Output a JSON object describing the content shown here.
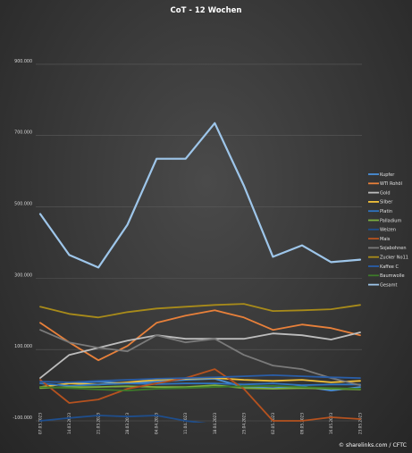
{
  "chart_data": {
    "type": "line",
    "title": "CoT - 12 Wochen",
    "credit": "© sharelinks.com / CFTC",
    "xlabel": "",
    "ylabel": "",
    "ylim": [
      -100000,
      1000000
    ],
    "yticks": [
      -100000,
      100000,
      300000,
      500000,
      700000,
      900000
    ],
    "ytick_labels": [
      "-100.000",
      "100.000",
      "300.000",
      "500.000",
      "700.000",
      "900.000"
    ],
    "grid": true,
    "legend_position": "right",
    "categories": [
      "07.03.2023",
      "14.03.2023",
      "21.03.2023",
      "28.03.2023",
      "04.04.2023",
      "11.04.2023",
      "18.04.2023",
      "25.04.2023",
      "02.05.2023",
      "09.05.2023",
      "16.05.2023",
      "23.05.2023"
    ],
    "series": [
      {
        "name": "Kupfer",
        "color": "#4a90d9",
        "values": [
          -5000,
          5000,
          10000,
          5000,
          10000,
          15000,
          18000,
          -5000,
          -8000,
          -3000,
          -15000,
          -5000
        ]
      },
      {
        "name": "WTI Rohöl",
        "color": "#e8803a",
        "values": [
          175000,
          120000,
          70000,
          110000,
          175000,
          195000,
          210000,
          190000,
          155000,
          170000,
          160000,
          140000
        ]
      },
      {
        "name": "Gold",
        "color": "#bdbdbd",
        "values": [
          20000,
          85000,
          105000,
          125000,
          140000,
          130000,
          130000,
          130000,
          145000,
          140000,
          128000,
          148000
        ]
      },
      {
        "name": "Silber",
        "color": "#f2c13a",
        "values": [
          -5000,
          5000,
          2000,
          8000,
          15000,
          18000,
          20000,
          15000,
          12000,
          15000,
          8000,
          12000
        ]
      },
      {
        "name": "Platin",
        "color": "#2f74c0",
        "values": [
          5000,
          -2000,
          2000,
          5000,
          3000,
          5000,
          5000,
          2000,
          5000,
          0,
          2000,
          2000
        ]
      },
      {
        "name": "Palladium",
        "color": "#7cae3f",
        "values": [
          -8000,
          -5000,
          -5000,
          -3000,
          -5000,
          -5000,
          0,
          -8000,
          -10000,
          -8000,
          -10000,
          -12000
        ]
      },
      {
        "name": "Weizen",
        "color": "#1f4e8c",
        "values": [
          -100000,
          -92000,
          -85000,
          -88000,
          -85000,
          -100000,
          -110000,
          -115000,
          -118000,
          -120000,
          -112000,
          -110000
        ]
      },
      {
        "name": "Mais",
        "color": "#b5521f",
        "values": [
          15000,
          -50000,
          -40000,
          -10000,
          5000,
          20000,
          45000,
          -10000,
          -100000,
          -100000,
          -90000,
          -95000
        ]
      },
      {
        "name": "Sojabohnen",
        "color": "#7a7a7a",
        "values": [
          155000,
          120000,
          105000,
          95000,
          140000,
          120000,
          130000,
          85000,
          55000,
          45000,
          20000,
          0
        ]
      },
      {
        "name": "Zucker No11",
        "color": "#a88b1a",
        "values": [
          220000,
          200000,
          190000,
          205000,
          215000,
          220000,
          225000,
          228000,
          208000,
          210000,
          213000,
          225000
        ]
      },
      {
        "name": "Kaffee C",
        "color": "#2a5ea8",
        "values": [
          10000,
          8000,
          12000,
          15000,
          18000,
          20000,
          22000,
          25000,
          28000,
          25000,
          22000,
          20000
        ]
      },
      {
        "name": "Baumwolle",
        "color": "#3d7a2a",
        "values": [
          -5000,
          -8000,
          -12000,
          -15000,
          -10000,
          -8000,
          -5000,
          -3000,
          -2000,
          -5000,
          -8000,
          -10000
        ]
      },
      {
        "name": "Gesamt",
        "color": "#9ec6ea",
        "values": [
          480000,
          365000,
          330000,
          450000,
          635000,
          635000,
          735000,
          560000,
          360000,
          392000,
          345000,
          352000
        ]
      }
    ]
  }
}
